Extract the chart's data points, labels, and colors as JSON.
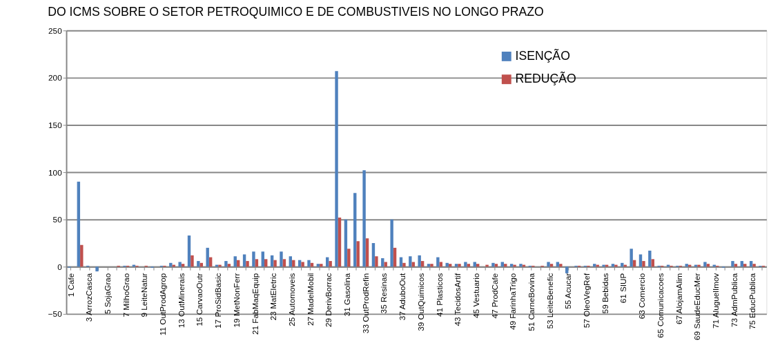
{
  "chart_data": {
    "type": "bar",
    "title": "DO ICMS SOBRE O SETOR PETROQUIMICO E DE COMBUSTIVEIS NO LONGO PRAZO",
    "categories": [
      "1 Cafe",
      null,
      "3 ArrozCasca",
      null,
      "5 SojaGrao",
      null,
      "7 MilhoGrao",
      null,
      "9 LeiteNatur",
      null,
      "11 OutProdAgrop",
      null,
      "13 OutMinerais",
      null,
      "15 CarvaoOutr",
      null,
      "17 ProSidBasic",
      null,
      "19 MetNonFerr",
      null,
      "21 FabMaqEquip",
      null,
      "23 MatEletric",
      null,
      "25 Automoveis",
      null,
      "27 MadeiMobil",
      null,
      "29 DerivBorrac",
      null,
      "31 Gasolina",
      null,
      "33 OutProdRefin",
      null,
      "35 Resinas",
      null,
      "37 AduboOut",
      null,
      "39 OutQuimicos",
      null,
      "41 Plasticos",
      null,
      "43 TecidosArtif",
      null,
      "45 Vestuario",
      null,
      "47 ProdCafe",
      null,
      "49 FarinhaTrigo",
      null,
      "51 CarneBovina",
      null,
      "53 LeiteBenefic",
      null,
      "55 Acucar",
      null,
      "57 OleoVegRef",
      null,
      "59 Bebidas",
      null,
      "61 SIUP",
      null,
      "63 Comercio",
      null,
      "65 Comunicacoes",
      null,
      "67 AlojamAlim",
      null,
      "69 SaudeEducMer",
      null,
      "71 AluguelImov",
      null,
      "73 AdmPublica",
      null,
      "75 EducPublica",
      null
    ],
    "series": [
      {
        "name": "ISENÇÃO",
        "color": "#4f81bd",
        "values": [
          -1,
          90,
          1,
          -5,
          0,
          0,
          1,
          2,
          0,
          -1,
          1,
          4,
          5,
          33,
          6,
          20,
          2,
          6,
          11,
          13,
          16,
          16,
          12,
          16,
          11,
          7,
          7,
          3,
          10,
          207,
          50,
          78,
          102,
          25,
          9,
          50,
          10,
          11,
          12,
          3,
          10,
          4,
          3,
          5,
          5,
          0,
          4,
          5,
          3,
          3,
          1,
          0,
          5,
          5,
          -7,
          1,
          1,
          3,
          2,
          3,
          4,
          19,
          13,
          17,
          1,
          2,
          1,
          3,
          2,
          5,
          2,
          -1,
          6,
          6,
          6,
          1
        ]
      },
      {
        "name": "REDUÇÃO",
        "color": "#c0504d",
        "values": [
          0,
          23,
          0,
          0,
          0,
          1,
          1,
          1,
          1,
          0,
          1,
          2,
          3,
          12,
          4,
          10,
          2,
          3,
          7,
          6,
          8,
          8,
          7,
          8,
          7,
          5,
          4,
          3,
          6,
          52,
          19,
          27,
          30,
          11,
          5,
          20,
          4,
          5,
          6,
          3,
          5,
          3,
          3,
          3,
          3,
          2,
          3,
          3,
          2,
          2,
          1,
          1,
          3,
          3,
          0,
          1,
          1,
          2,
          2,
          2,
          2,
          7,
          6,
          8,
          1,
          1,
          1,
          2,
          2,
          3,
          1,
          0,
          3,
          3,
          3,
          1
        ]
      }
    ],
    "ylim": [
      -50,
      250
    ],
    "yticks": [
      -50,
      0,
      50,
      100,
      150,
      200,
      250
    ],
    "grid": "y",
    "legend": "top right"
  }
}
